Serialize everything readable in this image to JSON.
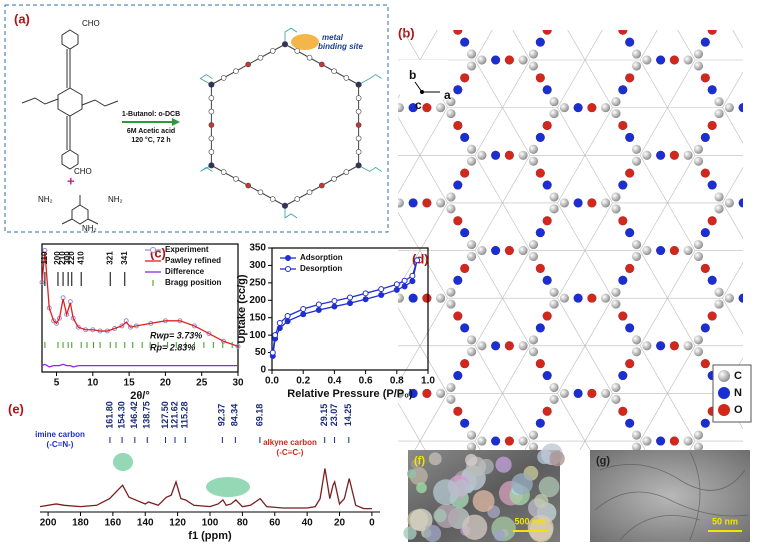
{
  "panel_a": {
    "label": "(a)",
    "reagents": [
      "CHO",
      "CHO",
      "NH₂",
      "NH₂",
      "NH₂"
    ],
    "plus": "+",
    "conditions": [
      "1-Butanol: o-DCB",
      "6M Acetic acid",
      "120 °C, 72 h"
    ],
    "site": [
      "metal",
      "binding site"
    ]
  },
  "panel_b": {
    "label": "(b)",
    "axes": [
      "b",
      "a",
      "c"
    ],
    "legend": [
      "C",
      "N",
      "O"
    ]
  },
  "chart_data": [
    {
      "type": "line",
      "panel_label": "(c)",
      "x_label": "2θ/°",
      "xlim": [
        3,
        30
      ],
      "xticks": [
        5,
        10,
        15,
        20,
        25,
        30
      ],
      "ylim": [
        0,
        100
      ],
      "legend": "upper right",
      "x": [
        3,
        3.4,
        4,
        4.6,
        5,
        5.4,
        5.9,
        6.4,
        6.9,
        7.3,
        8,
        9,
        10,
        11,
        12,
        13,
        14,
        14.6,
        15.2,
        16,
        18,
        20,
        22,
        24,
        26,
        28,
        30
      ],
      "series": [
        {
          "name": "Experiment",
          "color": "#9b8fd6",
          "marker": "open",
          "values": [
            70,
            95,
            50,
            40,
            38,
            42,
            58,
            45,
            55,
            42,
            35,
            33,
            33,
            32,
            32,
            34,
            36,
            40,
            35,
            36,
            38,
            40,
            40,
            36,
            30,
            24,
            20
          ]
        },
        {
          "name": "Pawley refined",
          "color": "#e02020",
          "values": [
            70,
            94,
            50,
            40,
            38,
            42,
            57,
            45,
            54,
            42,
            35,
            33,
            33,
            32,
            32,
            34,
            36,
            39,
            35,
            36,
            38,
            40,
            40,
            36,
            30,
            24,
            20
          ]
        },
        {
          "name": "Difference",
          "color": "#8a2be2",
          "values": [
            5,
            6,
            4,
            5,
            5,
            5,
            6,
            5,
            5,
            4,
            5,
            5,
            5,
            5,
            5,
            5,
            5,
            5,
            5,
            5,
            5,
            5,
            5,
            5,
            5,
            5,
            5
          ]
        }
      ],
      "bragg": {
        "name": "Bragg position",
        "color": "#3c9a1e",
        "positions": [
          3.4,
          5.2,
          5.9,
          6.6,
          7.1,
          8.4,
          9.2,
          10.1,
          11,
          12.4,
          13.2,
          14.4,
          15.5,
          16.8,
          17.9,
          19,
          20.3,
          21.5,
          22.8,
          24,
          25.3,
          26.6,
          27.9,
          29.2
        ]
      },
      "peak_labels": [
        {
          "value": 3.4,
          "label": "110"
        },
        {
          "value": 5.2,
          "label": "200"
        },
        {
          "value": 5.9,
          "label": "210"
        },
        {
          "value": 6.6,
          "label": "300"
        },
        {
          "value": 7.1,
          "label": "220"
        },
        {
          "value": 8.4,
          "label": "410"
        },
        {
          "value": 12.4,
          "label": "321"
        },
        {
          "value": 14.4,
          "label": "341"
        }
      ],
      "annotations": [
        "Rwp= 3.73%",
        "Rp= 2.83%"
      ]
    },
    {
      "type": "line",
      "panel_label": "(d)",
      "x_label": "Relative Pressure (P/P₀)",
      "y_label": "Uptake (cc/g)",
      "xlim": [
        0,
        1
      ],
      "xticks": [
        {
          "value": 0,
          "label": "0.0"
        },
        {
          "value": 0.2,
          "label": "0.2"
        },
        {
          "value": 0.4,
          "label": "0.4"
        },
        {
          "value": 0.6,
          "label": "0.6"
        },
        {
          "value": 0.8,
          "label": "0.8"
        },
        {
          "value": 1,
          "label": "1.0"
        }
      ],
      "ylim": [
        0,
        350
      ],
      "yticks": [
        0,
        50,
        100,
        150,
        200,
        250,
        300,
        350
      ],
      "legend": "upper left",
      "x": [
        0.005,
        0.02,
        0.05,
        0.1,
        0.2,
        0.3,
        0.4,
        0.5,
        0.6,
        0.7,
        0.8,
        0.85,
        0.9,
        0.93
      ],
      "series": [
        {
          "name": "Adsorption",
          "color": "#1f2fd0",
          "marker": "filled",
          "values": [
            40,
            90,
            120,
            140,
            160,
            172,
            182,
            192,
            203,
            215,
            230,
            240,
            255,
            315
          ]
        },
        {
          "name": "Desorption",
          "color": "#1f2fd0",
          "marker": "open",
          "values": [
            50,
            100,
            135,
            155,
            175,
            188,
            198,
            208,
            220,
            232,
            246,
            256,
            270,
            315
          ]
        }
      ]
    },
    {
      "type": "line",
      "panel_label": "(e)",
      "x_label": "f1 (ppm)",
      "xlim": [
        205,
        -5
      ],
      "xticks": [
        200,
        180,
        160,
        140,
        120,
        100,
        80,
        60,
        40,
        20,
        0
      ],
      "ylim": [
        0,
        100
      ],
      "x": [
        205,
        195,
        190,
        180,
        170,
        162,
        158,
        154,
        150,
        146,
        140,
        138,
        132,
        127,
        124,
        121,
        118,
        115,
        110,
        100,
        95,
        92,
        90,
        87,
        84,
        80,
        75,
        69,
        65,
        55,
        50,
        40,
        35,
        32,
        29,
        26,
        24,
        23,
        20,
        17,
        14,
        10,
        5,
        0
      ],
      "series": [
        {
          "color": "#7a1f1f",
          "values": [
            8,
            12,
            10,
            8,
            10,
            20,
            30,
            40,
            22,
            18,
            12,
            15,
            10,
            22,
            25,
            45,
            20,
            18,
            10,
            8,
            12,
            18,
            10,
            12,
            18,
            8,
            10,
            20,
            8,
            6,
            6,
            6,
            8,
            20,
            65,
            20,
            40,
            45,
            12,
            20,
            50,
            10,
            5,
            5
          ]
        }
      ],
      "peak_labels": [
        {
          "value": 161.8,
          "label": "161.80"
        },
        {
          "value": 154.3,
          "label": "154.30"
        },
        {
          "value": 146.42,
          "label": "146.42"
        },
        {
          "value": 138.75,
          "label": "138.75"
        },
        {
          "value": 127.5,
          "label": "127.50"
        },
        {
          "value": 121.62,
          "label": "121.62"
        },
        {
          "value": 115.28,
          "label": "115.28"
        },
        {
          "value": 92.37,
          "label": "92.37"
        },
        {
          "value": 84.34,
          "label": "84.34"
        },
        {
          "value": 69.18,
          "label": "69.18"
        },
        {
          "value": 29.15,
          "label": "29.15"
        },
        {
          "value": 23.07,
          "label": "23.07"
        },
        {
          "value": 14.25,
          "label": "14.25"
        }
      ],
      "annotations": [
        "imine carbon",
        "(-C=N-)",
        "alkyne carbon",
        "(-C≡C-)"
      ]
    }
  ],
  "panel_f": {
    "label": "(f)",
    "scale": "500 nm"
  },
  "panel_g": {
    "label": "(g)",
    "scale": "50 nm"
  }
}
